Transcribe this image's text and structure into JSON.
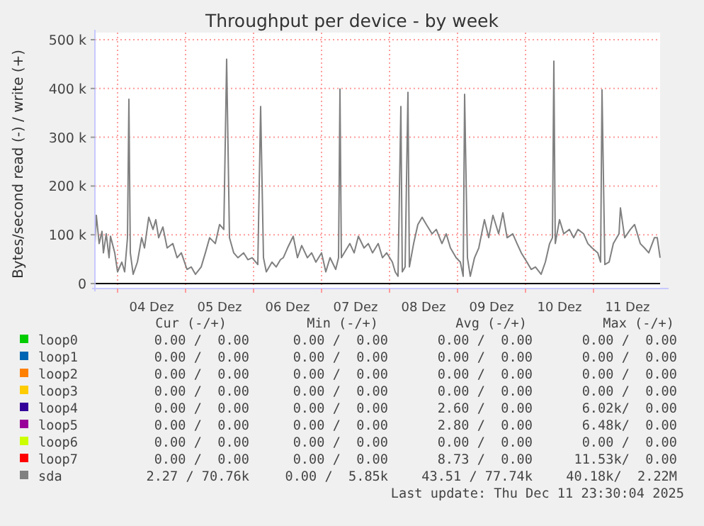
{
  "chart_data": {
    "type": "line",
    "title": "Throughput per device - by week",
    "ylabel": "Bytes/second read (-) / write (+)",
    "xlim": [
      "2025-12-03T16:00",
      "2025-12-11T23:30"
    ],
    "xticks": [
      {
        "value": "2025-12-04T00:00",
        "label": null
      },
      {
        "value": "2025-12-04T12:00",
        "label": "04 Dez"
      },
      {
        "value": "2025-12-05T00:00",
        "label": null
      },
      {
        "value": "2025-12-05T12:00",
        "label": "05 Dez"
      },
      {
        "value": "2025-12-06T00:00",
        "label": null
      },
      {
        "value": "2025-12-06T12:00",
        "label": "06 Dez"
      },
      {
        "value": "2025-12-07T00:00",
        "label": null
      },
      {
        "value": "2025-12-07T12:00",
        "label": "07 Dez"
      },
      {
        "value": "2025-12-08T00:00",
        "label": null
      },
      {
        "value": "2025-12-08T12:00",
        "label": "08 Dez"
      },
      {
        "value": "2025-12-09T00:00",
        "label": null
      },
      {
        "value": "2025-12-09T12:00",
        "label": "09 Dez"
      },
      {
        "value": "2025-12-10T00:00",
        "label": null
      },
      {
        "value": "2025-12-10T12:00",
        "label": "10 Dez"
      },
      {
        "value": "2025-12-11T00:00",
        "label": null
      },
      {
        "value": "2025-12-11T12:00",
        "label": "11 Dez"
      }
    ],
    "ylim": [
      -10000,
      500000
    ],
    "yticks": [
      {
        "value": 0,
        "label": "0"
      },
      {
        "value": 100000,
        "label": "100 k"
      },
      {
        "value": 200000,
        "label": "200 k"
      },
      {
        "value": 300000,
        "label": "300 k"
      },
      {
        "value": 400000,
        "label": "400 k"
      },
      {
        "value": 500000,
        "label": "500 k"
      }
    ],
    "grid": true,
    "legend": "bottom",
    "series": [
      {
        "name": "loop0",
        "color": "#00cc00"
      },
      {
        "name": "loop1",
        "color": "#0066b3"
      },
      {
        "name": "loop2",
        "color": "#ff8000"
      },
      {
        "name": "loop3",
        "color": "#ffcc00"
      },
      {
        "name": "loop4",
        "color": "#330099"
      },
      {
        "name": "loop5",
        "color": "#990099"
      },
      {
        "name": "loop6",
        "color": "#ccff00"
      },
      {
        "name": "loop7",
        "color": "#ff0000"
      },
      {
        "name": "sda",
        "color": "#808080",
        "x": [
          "2025-12-03T16:00",
          "2025-12-03T16:30",
          "2025-12-03T17:30",
          "2025-12-03T18:30",
          "2025-12-03T19:00",
          "2025-12-03T20:00",
          "2025-12-03T21:00",
          "2025-12-03T21:30",
          "2025-12-03T23:00",
          "2025-12-04T00:00",
          "2025-12-04T01:30",
          "2025-12-04T02:30",
          "2025-12-04T03:30",
          "2025-12-04T04:00",
          "2025-12-04T04:30",
          "2025-12-04T05:30",
          "2025-12-04T07:00",
          "2025-12-04T08:30",
          "2025-12-04T09:30",
          "2025-12-04T11:00",
          "2025-12-04T12:30",
          "2025-12-04T13:30",
          "2025-12-04T14:30",
          "2025-12-04T16:00",
          "2025-12-04T17:30",
          "2025-12-04T19:30",
          "2025-12-04T21:00",
          "2025-12-04T22:30",
          "2025-12-05T00:30",
          "2025-12-05T02:00",
          "2025-12-05T03:30",
          "2025-12-05T05:30",
          "2025-12-05T07:00",
          "2025-12-05T08:30",
          "2025-12-05T10:30",
          "2025-12-05T12:00",
          "2025-12-05T13:30",
          "2025-12-05T14:30",
          "2025-12-05T15:30",
          "2025-12-05T17:00",
          "2025-12-05T18:30",
          "2025-12-05T20:30",
          "2025-12-05T22:00",
          "2025-12-05T23:30",
          "2025-12-06T01:30",
          "2025-12-06T02:30",
          "2025-12-06T03:30",
          "2025-12-06T04:30",
          "2025-12-06T06:30",
          "2025-12-06T08:00",
          "2025-12-06T09:30",
          "2025-12-06T10:30",
          "2025-12-06T12:00",
          "2025-12-06T14:00",
          "2025-12-06T15:30",
          "2025-12-06T17:00",
          "2025-12-06T19:00",
          "2025-12-06T20:30",
          "2025-12-06T22:00",
          "2025-12-07T00:00",
          "2025-12-07T01:30",
          "2025-12-07T03:00",
          "2025-12-07T05:00",
          "2025-12-07T06:00",
          "2025-12-07T06:30",
          "2025-12-07T07:00",
          "2025-12-07T08:00",
          "2025-12-07T10:00",
          "2025-12-07T11:30",
          "2025-12-07T13:00",
          "2025-12-07T15:00",
          "2025-12-07T16:30",
          "2025-12-07T18:00",
          "2025-12-07T20:00",
          "2025-12-07T21:30",
          "2025-12-07T23:00",
          "2025-12-08T01:00",
          "2025-12-08T02:00",
          "2025-12-08T03:00",
          "2025-12-08T04:00",
          "2025-12-08T04:30",
          "2025-12-08T05:30",
          "2025-12-08T06:30",
          "2025-12-08T07:00",
          "2025-12-08T08:30",
          "2025-12-08T10:00",
          "2025-12-08T11:30",
          "2025-12-08T13:00",
          "2025-12-08T15:00",
          "2025-12-08T16:30",
          "2025-12-08T18:30",
          "2025-12-08T20:00",
          "2025-12-08T21:30",
          "2025-12-08T23:30",
          "2025-12-09T01:00",
          "2025-12-09T02:00",
          "2025-12-09T02:30",
          "2025-12-09T03:30",
          "2025-12-09T04:30",
          "2025-12-09T06:00",
          "2025-12-09T07:30",
          "2025-12-09T09:30",
          "2025-12-09T11:00",
          "2025-12-09T12:30",
          "2025-12-09T14:30",
          "2025-12-09T16:00",
          "2025-12-09T17:30",
          "2025-12-09T19:30",
          "2025-12-09T21:00",
          "2025-12-09T22:30",
          "2025-12-10T00:30",
          "2025-12-10T02:00",
          "2025-12-10T03:30",
          "2025-12-10T05:30",
          "2025-12-10T07:00",
          "2025-12-10T08:30",
          "2025-12-10T09:30",
          "2025-12-10T10:00",
          "2025-12-10T10:30",
          "2025-12-10T12:00",
          "2025-12-10T13:30",
          "2025-12-10T15:30",
          "2025-12-10T17:00",
          "2025-12-10T18:30",
          "2025-12-10T20:30",
          "2025-12-10T22:00",
          "2025-12-10T23:30",
          "2025-12-11T01:30",
          "2025-12-11T02:30",
          "2025-12-11T03:00",
          "2025-12-11T04:00",
          "2025-12-11T05:30",
          "2025-12-11T07:00",
          "2025-12-11T09:00",
          "2025-12-11T09:30",
          "2025-12-11T11:00",
          "2025-12-11T13:00",
          "2025-12-11T14:30",
          "2025-12-11T16:30",
          "2025-12-11T18:00",
          "2025-12-11T19:30",
          "2025-12-11T21:30",
          "2025-12-11T22:30",
          "2025-12-11T23:30"
        ],
        "values": [
          82000,
          140000,
          82000,
          107000,
          63000,
          102000,
          53000,
          97000,
          63000,
          24000,
          44000,
          24000,
          94000,
          378000,
          63000,
          19000,
          44000,
          94000,
          73000,
          136000,
          111000,
          131000,
          94000,
          116000,
          73000,
          82000,
          53000,
          63000,
          29000,
          34000,
          19000,
          34000,
          63000,
          94000,
          82000,
          121000,
          111000,
          460000,
          94000,
          63000,
          53000,
          63000,
          49000,
          53000,
          39000,
          363000,
          53000,
          24000,
          44000,
          34000,
          49000,
          53000,
          73000,
          97000,
          53000,
          78000,
          53000,
          63000,
          44000,
          63000,
          24000,
          53000,
          29000,
          53000,
          399000,
          53000,
          63000,
          82000,
          63000,
          97000,
          73000,
          82000,
          63000,
          82000,
          53000,
          63000,
          44000,
          24000,
          15000,
          363000,
          24000,
          34000,
          392000,
          34000,
          82000,
          121000,
          136000,
          121000,
          102000,
          111000,
          82000,
          102000,
          73000,
          53000,
          44000,
          15000,
          388000,
          53000,
          15000,
          53000,
          73000,
          131000,
          94000,
          140000,
          102000,
          145000,
          94000,
          102000,
          82000,
          63000,
          44000,
          29000,
          34000,
          19000,
          44000,
          82000,
          94000,
          456000,
          82000,
          131000,
          102000,
          111000,
          94000,
          111000,
          102000,
          82000,
          73000,
          63000,
          44000,
          397000,
          39000,
          44000,
          82000,
          102000,
          155000,
          94000,
          111000,
          121000,
          82000,
          73000,
          63000,
          94000,
          94000,
          53000
        ]
      }
    ],
    "annotations": [
      "Cur (-/+)",
      "Min (-/+)",
      "Avg (-/+)",
      "Max (-/+)",
      "0.00 /  0.00",
      "0.00 /  0.00",
      "0.00 /  0.00",
      "0.00 /  0.00",
      "0.00 /  0.00",
      "0.00 /  0.00",
      "0.00 /  0.00",
      "0.00 /  0.00",
      "0.00 /  0.00",
      "0.00 /  0.00",
      "0.00 /  0.00",
      "0.00 /  0.00",
      "0.00 /  0.00",
      "0.00 /  0.00",
      "0.00 /  0.00",
      "0.00 /  0.00",
      "0.00 /  0.00",
      "0.00 /  0.00",
      "2.60 /  0.00",
      "6.02k/  0.00",
      "0.00 /  0.00",
      "0.00 /  0.00",
      "2.80 /  0.00",
      "6.48k/  0.00",
      "0.00 /  0.00",
      "0.00 /  0.00",
      "0.00 /  0.00",
      "0.00 /  0.00",
      "0.00 /  0.00",
      "0.00 /  0.00",
      "8.73 /  0.00",
      "11.53k/  0.00",
      "2.27 / 70.76k",
      "0.00 /  5.85k",
      "43.51 / 77.74k",
      "40.18k/  2.22M",
      "Last update: Thu Dec 11 23:30:04 2025"
    ]
  }
}
